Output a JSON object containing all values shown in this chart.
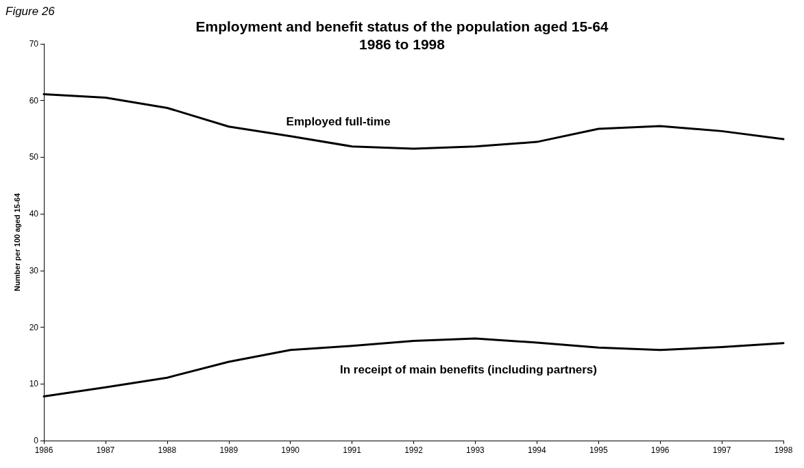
{
  "chart_data": {
    "type": "line",
    "title": "Employment and benefit status of the population aged 15-64\n1986 to 1998",
    "ylabel": "Number per 100 aged 15-64",
    "x": [
      1986,
      1987,
      1988,
      1989,
      1990,
      1991,
      1992,
      1993,
      1994,
      1995,
      1996,
      1997,
      1998
    ],
    "series": [
      {
        "name": "Employed full-time",
        "color": "#000000",
        "values": [
          61.1,
          60.5,
          58.7,
          55.4,
          53.7,
          51.9,
          51.5,
          51.9,
          52.7,
          55.0,
          55.5,
          54.6,
          53.2
        ]
      },
      {
        "name": "In receipt of main benefits (including partners)",
        "color": "#000000",
        "values": [
          7.8,
          9.4,
          11.1,
          13.9,
          16.0,
          16.7,
          17.6,
          18.0,
          17.3,
          16.4,
          16.0,
          16.5,
          17.2
        ]
      }
    ],
    "annotations": [
      "Figure 26"
    ],
    "xlim": [
      1986,
      1998
    ],
    "xticks": [
      1986,
      1987,
      1988,
      1989,
      1990,
      1991,
      1992,
      1993,
      1994,
      1995,
      1996,
      1997,
      1998
    ],
    "ylim": [
      0,
      70
    ],
    "yticks": [
      0,
      10,
      20,
      30,
      40,
      50,
      60,
      70
    ],
    "grid": false,
    "marker": "none",
    "line_style": "solid"
  }
}
